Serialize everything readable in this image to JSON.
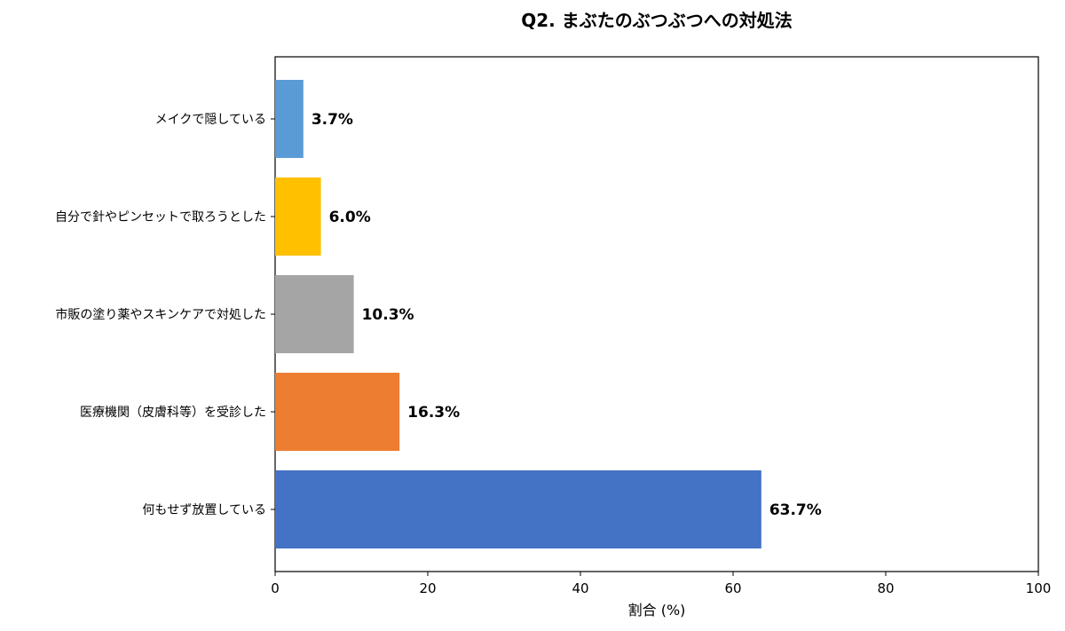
{
  "chart_data": {
    "type": "bar",
    "orientation": "horizontal",
    "title": "Q2. まぶたのぶつぶつへの対処法",
    "xlabel": "割合 (%)",
    "ylabel": "",
    "xlim": [
      0,
      100
    ],
    "xticks": [
      0,
      20,
      40,
      60,
      80,
      100
    ],
    "grid": false,
    "categories": [
      "メイクで隠している",
      "自分で針やピンセットで取ろうとした",
      "市販の塗り薬やスキンケアで対処した",
      "医療機関（皮膚科等）を受診した",
      "何もせず放置している"
    ],
    "values": [
      3.7,
      6.0,
      10.3,
      16.3,
      63.7
    ],
    "value_labels": [
      "3.7%",
      "6.0%",
      "10.3%",
      "16.3%",
      "63.7%"
    ],
    "colors": [
      "#5B9BD5",
      "#FFC000",
      "#A5A5A5",
      "#ED7D31",
      "#4472C4"
    ]
  }
}
